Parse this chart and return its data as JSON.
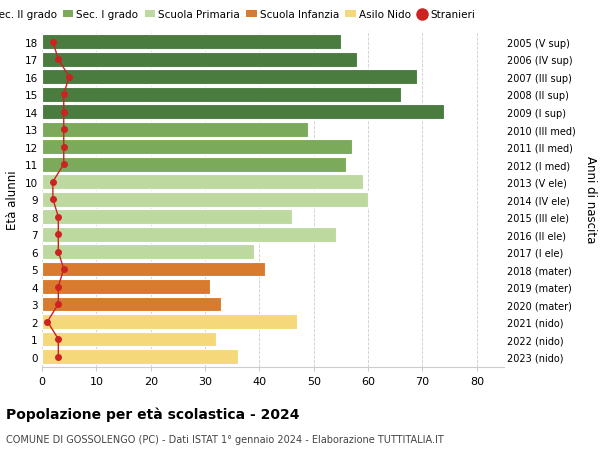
{
  "ages": [
    18,
    17,
    16,
    15,
    14,
    13,
    12,
    11,
    10,
    9,
    8,
    7,
    6,
    5,
    4,
    3,
    2,
    1,
    0
  ],
  "years": [
    "2005 (V sup)",
    "2006 (IV sup)",
    "2007 (III sup)",
    "2008 (II sup)",
    "2009 (I sup)",
    "2010 (III med)",
    "2011 (II med)",
    "2012 (I med)",
    "2013 (V ele)",
    "2014 (IV ele)",
    "2015 (III ele)",
    "2016 (II ele)",
    "2017 (I ele)",
    "2018 (mater)",
    "2019 (mater)",
    "2020 (mater)",
    "2021 (nido)",
    "2022 (nido)",
    "2023 (nido)"
  ],
  "bar_values": [
    55,
    58,
    69,
    66,
    74,
    49,
    57,
    56,
    59,
    60,
    46,
    54,
    39,
    41,
    31,
    33,
    47,
    32,
    36
  ],
  "stranieri": [
    2,
    3,
    5,
    4,
    4,
    4,
    4,
    4,
    2,
    2,
    3,
    3,
    3,
    4,
    3,
    3,
    1,
    3,
    3
  ],
  "bar_colors_by_age": {
    "18": "#4a7c3f",
    "17": "#4a7c3f",
    "16": "#4a7c3f",
    "15": "#4a7c3f",
    "14": "#4a7c3f",
    "13": "#7aaa5a",
    "12": "#7aaa5a",
    "11": "#7aaa5a",
    "10": "#bdd9a0",
    "9": "#bdd9a0",
    "8": "#bdd9a0",
    "7": "#bdd9a0",
    "6": "#bdd9a0",
    "5": "#d97b2e",
    "4": "#d97b2e",
    "3": "#d97b2e",
    "2": "#f5d87a",
    "1": "#f5d87a",
    "0": "#f5d87a"
  },
  "legend_labels": [
    "Sec. II grado",
    "Sec. I grado",
    "Scuola Primaria",
    "Scuola Infanzia",
    "Asilo Nido",
    "Stranieri"
  ],
  "legend_colors": [
    "#4a7c3f",
    "#7aaa5a",
    "#bdd9a0",
    "#d97b2e",
    "#f5d87a",
    "#cc2222"
  ],
  "ylabel_left": "Età alunni",
  "ylabel_right": "Anni di nascita",
  "xlim": [
    0,
    85
  ],
  "xticks": [
    0,
    10,
    20,
    30,
    40,
    50,
    60,
    70,
    80
  ],
  "title": "Popolazione per età scolastica - 2024",
  "subtitle": "COMUNE DI GOSSOLENGO (PC) - Dati ISTAT 1° gennaio 2024 - Elaborazione TUTTITALIA.IT",
  "background_color": "#ffffff",
  "grid_color": "#cccccc",
  "stranieri_color": "#cc2222",
  "bar_height": 0.85
}
